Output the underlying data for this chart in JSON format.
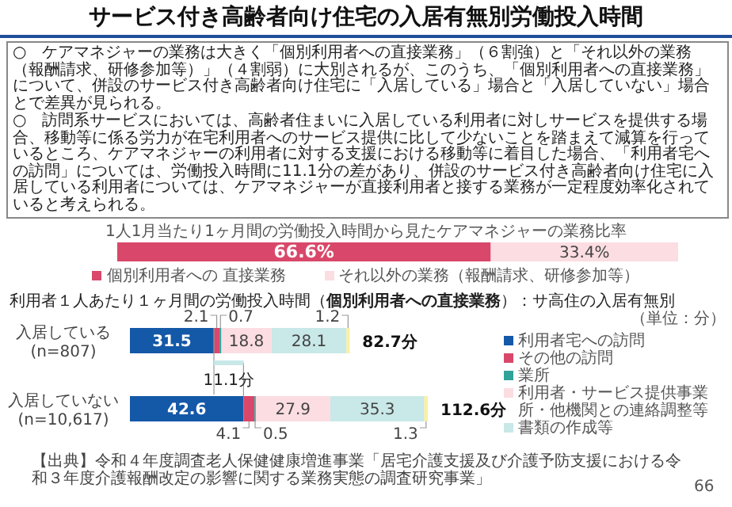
{
  "chart_data": [
    {
      "type": "bar",
      "orientation": "horizontal",
      "stacked": true,
      "title": "サービス付き高齢者向け住宅の入居有無別労働投入時間",
      "subtitle": "1人1月当たり1ヶ月間の労働投入時間から見たケアマネジャーの業務比率",
      "annotations": [
        "○　ケアマネジャーの業務は大きく「個別利用者への直接業務」（６割強）と「それ以外の業務（報酬請求、研修参加等）」（４割弱）に大別されるが、このうち、「個別利用者への直接業務」について、併設のサービス付き高齢者向け住宅に「入居している」場合と「入居していない」場合とで差異が見られる。",
        "○　訪問系サービスにおいては、高齢者住まいに入居している利用者に対しサービスを提供する場合、移動等に係る労力が在宅利用者へのサービス提供に比して少ないことを踏まえて減算を行っているところ、ケアマネジャーの利用者に対する支援における移動等に着目した場合、「利用者宅への訪問」については、労働投入時間に11.1分の差があり、併設のサービス付き高齢者向け住宅に入居している利用者については、ケアマネジャーが直接利用者と接する業務が一定程度効率化されていると考えられる。"
      ],
      "categories": [
        null
      ],
      "legend": "bottom",
      "series": [
        {
          "name": "個別利用者への 直接業務",
          "color": "#d9486a",
          "values": [
            66.6
          ],
          "value_labels": [
            "66.6%"
          ]
        },
        {
          "name": "それ以外の業務（報酬請求、研修参加等）",
          "color": "#fbdde2",
          "values": [
            33.4
          ],
          "value_labels": [
            "33.4%"
          ]
        }
      ]
    },
    {
      "type": "bar",
      "orientation": "horizontal",
      "stacked": true,
      "title": "利用者１人あたり１ヶ月間の労働投入時間（**個別利用者への直接業務**）：サ高住の入居有無別",
      "annotations": [
        "11.1分",
        "【出典】令和４年度調査老人保健健康増進事業「居宅介護支援及び介護予防支援における令和３年度介護報酬改定の影響に関する業務実態の調査研究事業」",
        "66",
        "（単位：分）",
        "82.7分",
        "112.6分"
      ],
      "categories": [
        "入居している (n=807)",
        "入居していない (n=10,617)"
      ],
      "data_labels": true,
      "legend": "right",
      "series": [
        {
          "name": "利用者宅への訪問",
          "color": "#1458a8",
          "values": [
            31.5,
            42.6
          ]
        },
        {
          "name": "その他の訪問",
          "color": "#d9486a",
          "values": [
            2.1,
            4.1
          ]
        },
        {
          "name": "業所",
          "color": "#2fa39a",
          "values": [
            0.7,
            0.5
          ]
        },
        {
          "name": "利用者・サービス提供事業所・他機関との連絡調整等",
          "color": "#fbdde2",
          "values": [
            18.8,
            27.9
          ]
        },
        {
          "name": "書類の作成等",
          "color": "#c9e8e8",
          "values": [
            28.1,
            35.3
          ]
        },
        {
          "color": "#fbf0a0",
          "values": [
            1.2,
            1.3
          ]
        }
      ]
    }
  ]
}
